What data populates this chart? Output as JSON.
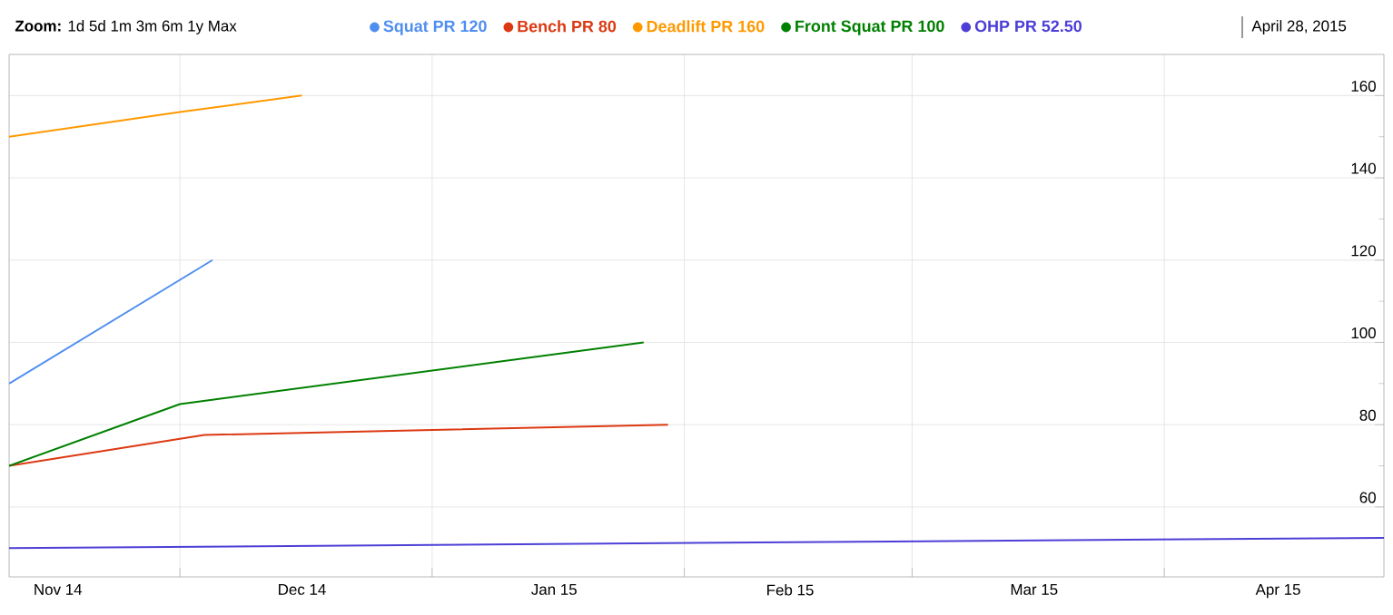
{
  "chart_data": {
    "type": "line",
    "series": [
      {
        "name": "Squat PR 120",
        "color": "#4f8ef0",
        "x": [
          "2014-11-10",
          "2014-12-05"
        ],
        "values": [
          90,
          120
        ]
      },
      {
        "name": "Bench PR 80",
        "color": "#dc3912",
        "x": [
          "2014-11-10",
          "2014-12-04",
          "2015-01-30"
        ],
        "values": [
          70,
          77.5,
          80
        ]
      },
      {
        "name": "Deadlift PR 160",
        "color": "#ff9900",
        "x": [
          "2014-11-10",
          "2014-12-01",
          "2014-12-16"
        ],
        "values": [
          150,
          156,
          160
        ]
      },
      {
        "name": "Front Squat PR 100",
        "color": "#008000",
        "x": [
          "2014-11-10",
          "2014-12-01",
          "2015-01-27"
        ],
        "values": [
          70,
          85,
          100
        ]
      },
      {
        "name": "OHP PR 52.50",
        "color": "#4d3fd6",
        "x": [
          "2014-11-10",
          "2015-04-28"
        ],
        "values": [
          50,
          52.5
        ]
      }
    ],
    "xlim": [
      "2014-11-10",
      "2015-04-28"
    ],
    "xticks": [
      {
        "value": "2014-11-16",
        "label": "Nov 14"
      },
      {
        "value": "2014-12-01",
        "label": null
      },
      {
        "value": "2014-12-16",
        "label": "Dec 14"
      },
      {
        "value": "2015-01-01",
        "label": null
      },
      {
        "value": "2015-01-16",
        "label": "Jan 15"
      },
      {
        "value": "2015-02-01",
        "label": null
      },
      {
        "value": "2015-02-14",
        "label": "Feb 15"
      },
      {
        "value": "2015-03-01",
        "label": null
      },
      {
        "value": "2015-03-16",
        "label": "Mar 15"
      },
      {
        "value": "2015-04-01",
        "label": null
      },
      {
        "value": "2015-04-15",
        "label": "Apr 15"
      }
    ],
    "ylim": [
      43,
      170
    ],
    "yticks": [
      60,
      80,
      100,
      120,
      140,
      160
    ],
    "grid": true,
    "legend": "top",
    "marker": "none",
    "line_style": "solid",
    "annotations": [
      "**Zoom:** 1d 5d 1m 3m 6m 1y Max",
      "April 28, 2015"
    ]
  }
}
